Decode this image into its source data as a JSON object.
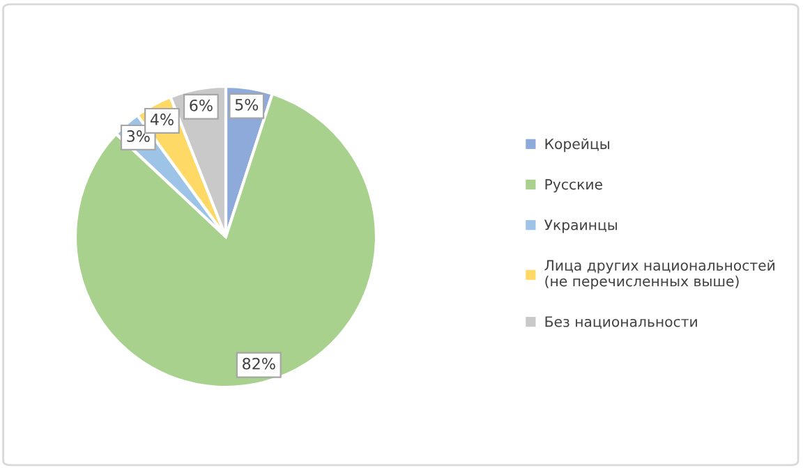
{
  "chart_data": {
    "type": "pie",
    "categories": [
      "Корейцы",
      "Русские",
      "Украинцы",
      "Лица других национальностей\n(не перечисленных выше)",
      "Без национальности"
    ],
    "values": [
      5,
      82,
      3,
      4,
      6
    ],
    "colors": [
      "#8eaadb",
      "#a9d18e",
      "#9dc3e6",
      "#ffd966",
      "#c9c9c9"
    ],
    "value_labels": [
      "5%",
      "82%",
      "3%",
      "4%",
      "6%"
    ],
    "legend": "right"
  }
}
